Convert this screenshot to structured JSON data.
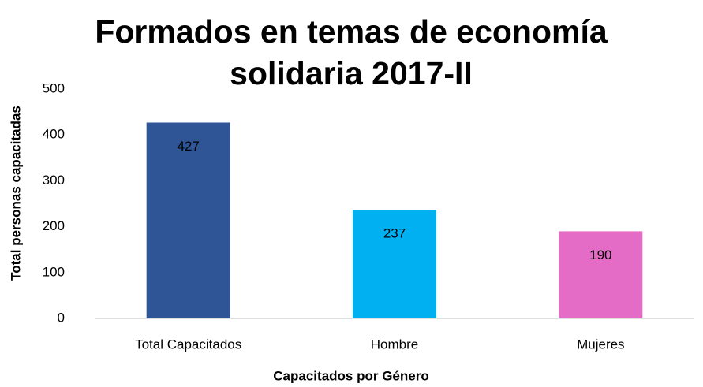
{
  "chart_data": {
    "type": "bar",
    "title": "Formados en temas de economía solidaria 2017-II",
    "x_label": "Capacitados por Género",
    "y_label": "Total personas capacitadas",
    "categories": [
      "Total Capacitados",
      "Hombre",
      "Mujeres"
    ],
    "values": [
      427,
      237,
      190
    ],
    "colors": [
      "#2f5597",
      "#00b0f0",
      "#e46bc6"
    ],
    "ylim": [
      0,
      500
    ],
    "yticks": [
      0,
      100,
      200,
      300,
      400,
      500
    ],
    "grid": false
  }
}
